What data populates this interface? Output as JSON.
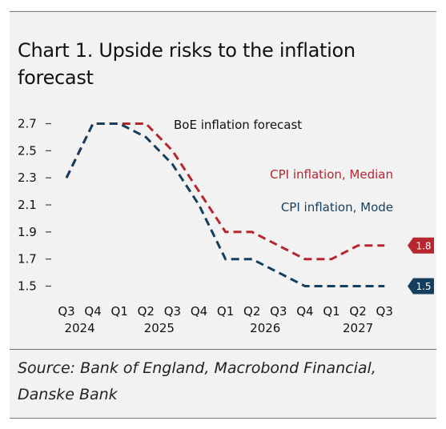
{
  "title": "Chart 1. Upside risks to the inflation forecast",
  "source": "Source: Bank of England, Macrobond Financial, Danske Bank",
  "colors": {
    "median": "#b5262e",
    "mode": "#153f5f",
    "background": "#f2f2f2"
  },
  "chart_data": {
    "type": "line",
    "x": [
      "Q3",
      "Q4",
      "Q1",
      "Q2",
      "Q3",
      "Q4",
      "Q1",
      "Q2",
      "Q3",
      "Q4",
      "Q1",
      "Q2",
      "Q3"
    ],
    "years": [
      {
        "label": "2024",
        "from": 0,
        "to": 1
      },
      {
        "label": "2025",
        "from": 2,
        "to": 5
      },
      {
        "label": "2026",
        "from": 6,
        "to": 9
      },
      {
        "label": "2027",
        "from": 10,
        "to": 12
      }
    ],
    "series": [
      {
        "name": "CPI inflation, Median",
        "color": "#b5262e",
        "values": [
          2.3,
          2.7,
          2.7,
          2.7,
          2.5,
          2.2,
          1.9,
          1.9,
          1.8,
          1.7,
          1.7,
          1.8,
          1.8
        ],
        "end_label": "1.8"
      },
      {
        "name": "CPI inflation, Mode",
        "color": "#153f5f",
        "values": [
          2.3,
          2.7,
          2.7,
          2.6,
          2.4,
          2.1,
          1.7,
          1.7,
          1.6,
          1.5,
          1.5,
          1.5,
          1.5
        ],
        "end_label": "1.5"
      }
    ],
    "annotations": [
      "BoE inflation forecast"
    ],
    "yticks": [
      "2.7",
      "2.5",
      "2.3",
      "2.1",
      "1.9",
      "1.7",
      "1.5"
    ],
    "ylim": [
      1.5,
      2.7
    ],
    "grid": false,
    "legend": "inline labels"
  }
}
